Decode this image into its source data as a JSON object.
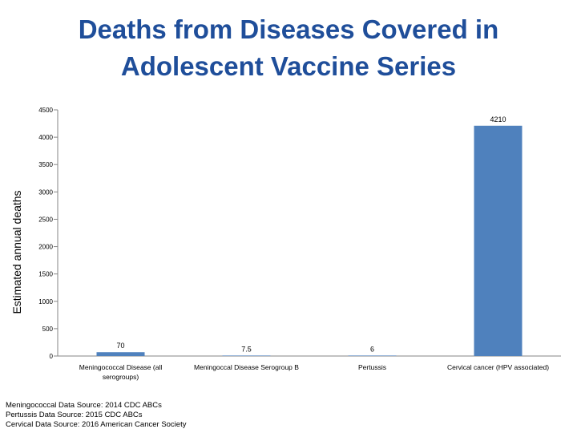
{
  "chart_data": {
    "type": "bar",
    "title_lines": [
      "Deaths from Diseases Covered in",
      "Adolescent Vaccine Series"
    ],
    "ylabel": "Estimated annual deaths",
    "xlabel": "",
    "ylim": [
      0,
      4500
    ],
    "yticks": [
      0,
      500,
      1000,
      1500,
      2000,
      2500,
      3000,
      3500,
      4000,
      4500
    ],
    "grid": false,
    "categories": [
      [
        "Meningococcal Disease (all",
        "serogroups)"
      ],
      [
        "Meningoccal Disease Serogroup B"
      ],
      [
        "Pertussis"
      ],
      [
        "Cervical cancer (HPV associated)"
      ]
    ],
    "values": [
      70,
      7.5,
      6,
      4210
    ],
    "data_labels": [
      "70",
      "7.5",
      "6",
      "4210"
    ],
    "bar_color": "#4f81bd"
  },
  "sources": [
    "Meningococcal Data Source: 2014 CDC ABCs",
    "Pertussis Data Source: 2015 CDC ABCs",
    "Cervical Data Source: 2016 American Cancer Society"
  ]
}
